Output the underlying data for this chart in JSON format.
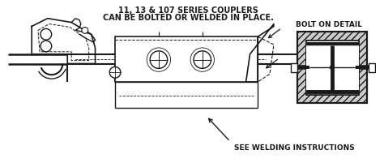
{
  "title_line1": "11, 13 & 107 SERIES COUPLERS",
  "title_line2": "CAN BE BOLTED OR WELDED IN PLACE.",
  "bolt_detail_label": "BOLT ON DETAIL",
  "welding_label": "SEE WELDING INSTRUCTIONS",
  "bg_color": "#ffffff",
  "text_color": "#1a1a1a",
  "line_color": "#1a1a1a",
  "title_fontsize": 7.0,
  "label_fontsize": 6.5,
  "small_fontsize": 6.0,
  "figsize": [
    4.74,
    2.06
  ],
  "dpi": 100
}
